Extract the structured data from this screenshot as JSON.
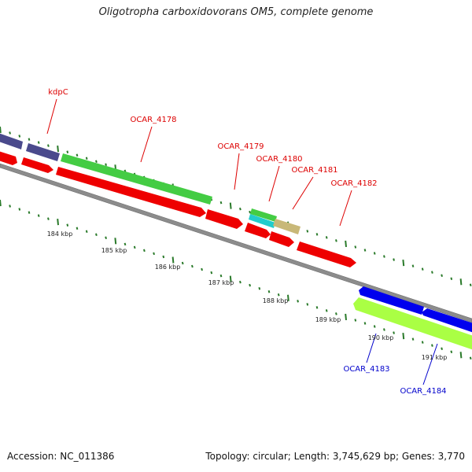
{
  "title": "Oligotropha carboxidovorans OM5, complete genome",
  "footer": {
    "accession": "Accession: NC_011386",
    "summary": "Topology: circular; Length: 3,745,629 bp; Genes: 3,770"
  },
  "colors": {
    "backbone": "#8c8c8c",
    "ticks": "#2a7a2a",
    "label_red": "#dd0000",
    "label_blue": "#0000cc",
    "purple": "#4a4a8c",
    "green": "#44cc44",
    "red": "#ee0000",
    "teal": "#22cccc",
    "tan": "#c8b878",
    "blue": "#0000ee",
    "lime": "#aaff44"
  },
  "gene_labels": [
    {
      "text": "kdpC",
      "color": "label_red"
    },
    {
      "text": "OCAR_4178",
      "color": "label_red"
    },
    {
      "text": "OCAR_4179",
      "color": "label_red"
    },
    {
      "text": "OCAR_4180",
      "color": "label_red"
    },
    {
      "text": "OCAR_4181",
      "color": "label_red"
    },
    {
      "text": "OCAR_4182",
      "color": "label_red"
    },
    {
      "text": "OCAR_4183",
      "color": "label_blue"
    },
    {
      "text": "OCAR_4184",
      "color": "label_blue"
    }
  ],
  "scale_labels": [
    "184 kbp",
    "185 kbp",
    "186 kbp",
    "187 kbp",
    "188 kbp",
    "189 kbp",
    "190 kbp",
    "191 kbp"
  ]
}
